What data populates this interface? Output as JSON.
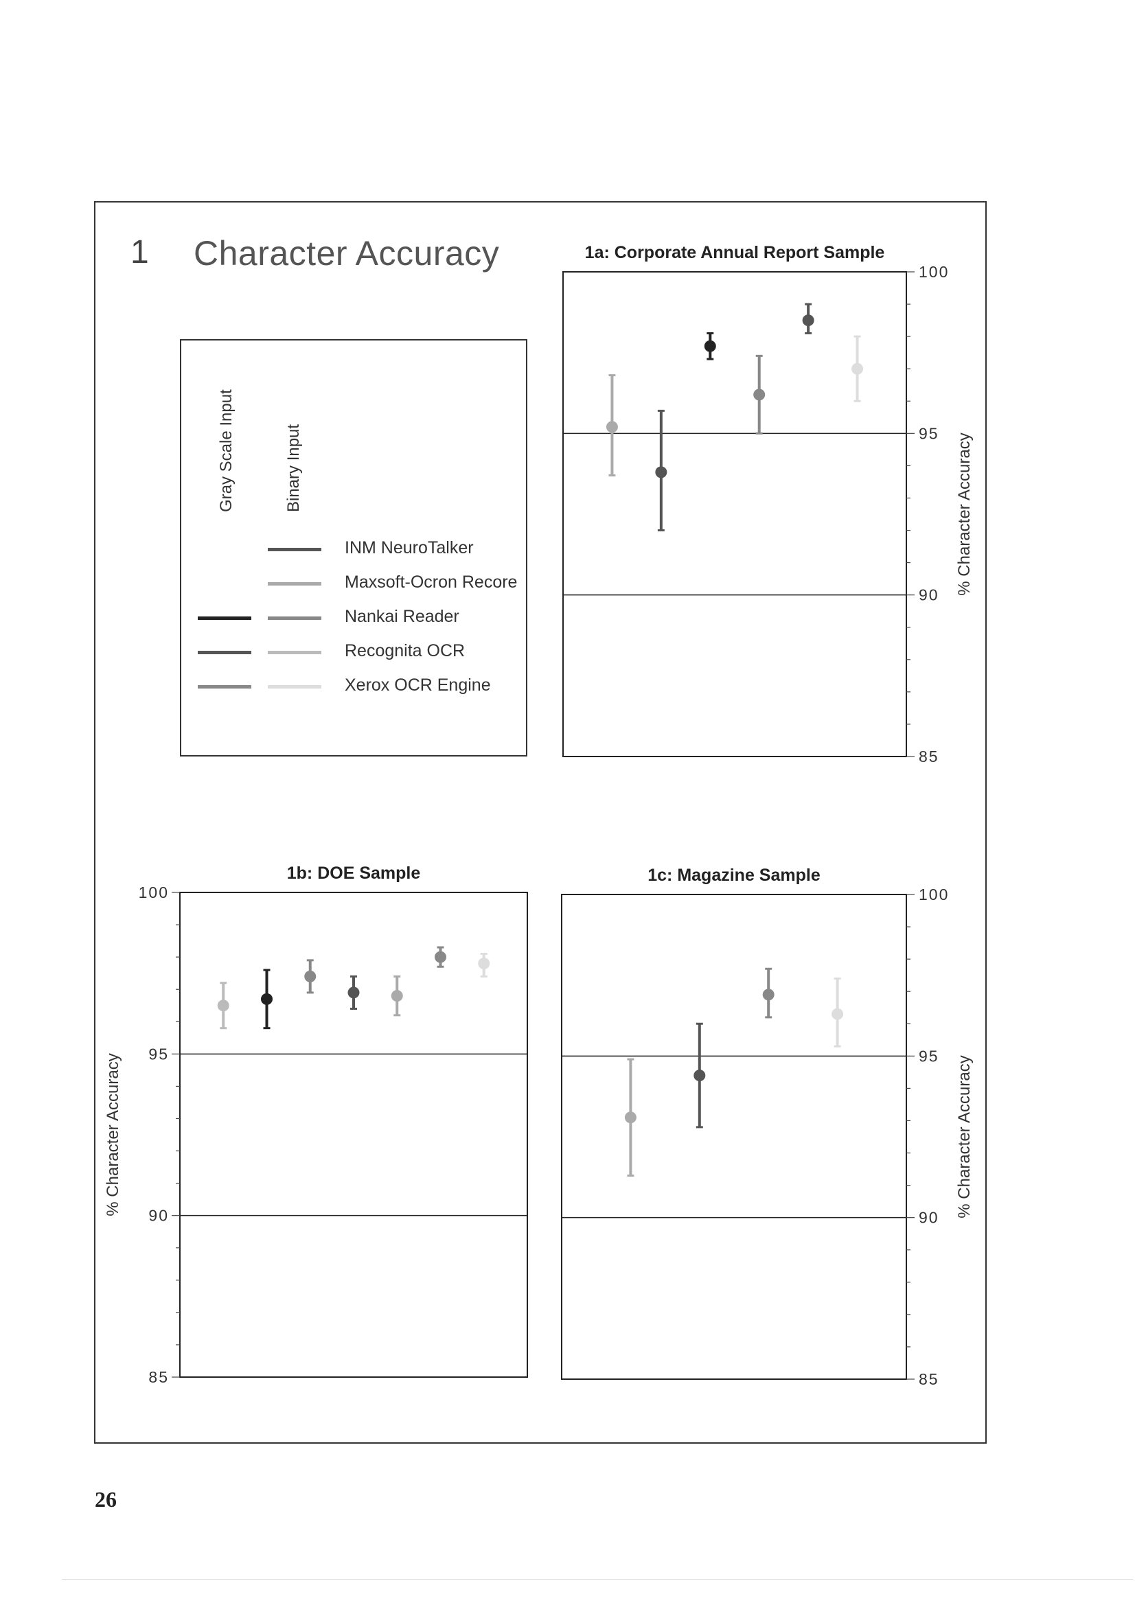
{
  "section": {
    "number": "1",
    "title": "Character Accuracy"
  },
  "legend": {
    "column_headers": [
      "Gray Scale Input",
      "Binary Input"
    ],
    "entries": [
      {
        "label": "INM NeuroTalker",
        "gray_color": null,
        "binary_color": "#555555"
      },
      {
        "label": "Maxsoft-Ocron Recore",
        "gray_color": null,
        "binary_color": "#aaaaaa"
      },
      {
        "label": "Nankai Reader",
        "gray_color": "#222222",
        "binary_color": "#888888"
      },
      {
        "label": "Recognita OCR",
        "gray_color": "#555555",
        "binary_color": "#bbbbbb"
      },
      {
        "label": "Xerox OCR Engine",
        "gray_color": "#888888",
        "binary_color": "#dddddd"
      }
    ]
  },
  "chart_data": [
    {
      "type": "scatter",
      "title": "1a: Corporate Annual Report Sample",
      "ylabel": "% Character Accuracy",
      "ylim": [
        85,
        100
      ],
      "yticks": [
        "100",
        "95",
        "90",
        "85"
      ],
      "reference_lines": [
        95,
        90
      ],
      "grid": false,
      "ytick_side": "right",
      "points": [
        {
          "x": 1,
          "y": 95.2,
          "low": 93.7,
          "high": 96.8,
          "color": "#aaaaaa"
        },
        {
          "x": 2,
          "y": 93.8,
          "low": 92.0,
          "high": 95.7,
          "color": "#555555"
        },
        {
          "x": 3,
          "y": 97.7,
          "low": 97.3,
          "high": 98.1,
          "color": "#222222"
        },
        {
          "x": 4,
          "y": 96.2,
          "low": 95.0,
          "high": 97.4,
          "color": "#888888"
        },
        {
          "x": 5,
          "y": 98.5,
          "low": 98.1,
          "high": 99.0,
          "color": "#555555"
        },
        {
          "x": 6,
          "y": 97.0,
          "low": 96.0,
          "high": 98.0,
          "color": "#dddddd"
        }
      ]
    },
    {
      "type": "scatter",
      "title": "1b: DOE Sample",
      "ylabel": "% Character Accuracy",
      "ylim": [
        85,
        100
      ],
      "yticks": [
        "100",
        "95",
        "90",
        "85"
      ],
      "reference_lines": [
        95,
        90
      ],
      "grid": false,
      "ytick_side": "left",
      "points": [
        {
          "x": 1,
          "y": 96.5,
          "low": 95.8,
          "high": 97.2,
          "color": "#bbbbbb"
        },
        {
          "x": 2,
          "y": 96.7,
          "low": 95.8,
          "high": 97.6,
          "color": "#222222"
        },
        {
          "x": 3,
          "y": 97.4,
          "low": 96.9,
          "high": 97.9,
          "color": "#888888"
        },
        {
          "x": 4,
          "y": 96.9,
          "low": 96.4,
          "high": 97.4,
          "color": "#555555"
        },
        {
          "x": 5,
          "y": 96.8,
          "low": 96.2,
          "high": 97.4,
          "color": "#aaaaaa"
        },
        {
          "x": 6,
          "y": 98.0,
          "low": 97.7,
          "high": 98.3,
          "color": "#888888"
        },
        {
          "x": 7,
          "y": 97.8,
          "low": 97.4,
          "high": 98.1,
          "color": "#dddddd"
        }
      ]
    },
    {
      "type": "scatter",
      "title": "1c: Magazine Sample",
      "ylabel": "% Character Accuracy",
      "ylim": [
        85,
        100
      ],
      "yticks": [
        "100",
        "95",
        "90",
        "85"
      ],
      "reference_lines": [
        95,
        90
      ],
      "grid": false,
      "ytick_side": "right",
      "points": [
        {
          "x": 1,
          "y": 93.1,
          "low": 91.3,
          "high": 94.9,
          "color": "#aaaaaa"
        },
        {
          "x": 2,
          "y": 94.4,
          "low": 92.8,
          "high": 96.0,
          "color": "#555555"
        },
        {
          "x": 3,
          "y": 96.9,
          "low": 96.2,
          "high": 97.7,
          "color": "#888888"
        },
        {
          "x": 4,
          "y": 96.3,
          "low": 95.3,
          "high": 97.4,
          "color": "#dddddd"
        }
      ]
    }
  ],
  "page_number": "26"
}
